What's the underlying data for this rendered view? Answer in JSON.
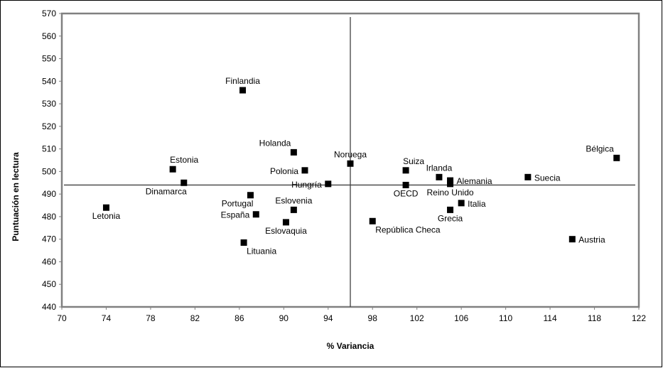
{
  "chart_data": {
    "type": "scatter",
    "title": "",
    "xlabel": "% Variancia",
    "ylabel": "Puntuación en lectura",
    "xlim": [
      70,
      122
    ],
    "ylim": [
      440,
      570
    ],
    "x_ticks": [
      "70",
      "74",
      "78",
      "82",
      "86",
      "90",
      "94",
      "98",
      "102",
      "106",
      "110",
      "114",
      "118",
      "122"
    ],
    "y_ticks": [
      "440",
      "450",
      "460",
      "470",
      "480",
      "490",
      "500",
      "510",
      "520",
      "530",
      "540",
      "550",
      "560",
      "570"
    ],
    "grid": false,
    "reference_lines": {
      "x": 96,
      "y": 494
    },
    "marker_color": "#000000",
    "points": [
      {
        "label": "Finlandia",
        "x": 86.3,
        "y": 536,
        "label_pos": "above"
      },
      {
        "label": "Holanda",
        "x": 90.9,
        "y": 508.5,
        "label_pos": "above-left"
      },
      {
        "label": "Estonia",
        "x": 80.0,
        "y": 501,
        "label_pos": "above-right"
      },
      {
        "label": "Dinamarca",
        "x": 81.0,
        "y": 495,
        "label_pos": "below-left"
      },
      {
        "label": "Polonia",
        "x": 91.9,
        "y": 500.5,
        "label_pos": "left"
      },
      {
        "label": "Hungría",
        "x": 94.0,
        "y": 494.5,
        "label_pos": "left"
      },
      {
        "label": "Noruega",
        "x": 96.0,
        "y": 503.5,
        "label_pos": "above"
      },
      {
        "label": "Suiza",
        "x": 101.0,
        "y": 500.5,
        "label_pos": "above-right"
      },
      {
        "label": "Irlanda",
        "x": 104.0,
        "y": 497.5,
        "label_pos": "above"
      },
      {
        "label": "Alemania",
        "x": 105.0,
        "y": 496,
        "label_pos": "right"
      },
      {
        "label": "Reino Unido",
        "x": 105.0,
        "y": 494.5,
        "label_pos": "below"
      },
      {
        "label": "OECD",
        "x": 101.0,
        "y": 494,
        "label_pos": "below"
      },
      {
        "label": "Suecia",
        "x": 112.0,
        "y": 497.5,
        "label_pos": "right"
      },
      {
        "label": "Bélgica",
        "x": 120.0,
        "y": 506,
        "label_pos": "above-left"
      },
      {
        "label": "Letonia",
        "x": 74.0,
        "y": 484,
        "label_pos": "below"
      },
      {
        "label": "Portugal",
        "x": 87.0,
        "y": 489.5,
        "label_pos": "below-left"
      },
      {
        "label": "España",
        "x": 87.5,
        "y": 481,
        "label_pos": "left"
      },
      {
        "label": "Eslovenia",
        "x": 90.9,
        "y": 483,
        "label_pos": "above"
      },
      {
        "label": "Eslovaquia",
        "x": 90.2,
        "y": 477.5,
        "label_pos": "below"
      },
      {
        "label": "Lituania",
        "x": 86.4,
        "y": 468.5,
        "label_pos": "below-right"
      },
      {
        "label": "República Checa",
        "x": 98.0,
        "y": 478,
        "label_pos": "below-right"
      },
      {
        "label": "Grecia",
        "x": 105.0,
        "y": 483,
        "label_pos": "below"
      },
      {
        "label": "Italia",
        "x": 106.0,
        "y": 486,
        "label_pos": "right"
      },
      {
        "label": "Austria",
        "x": 116.0,
        "y": 470,
        "label_pos": "right"
      }
    ]
  }
}
